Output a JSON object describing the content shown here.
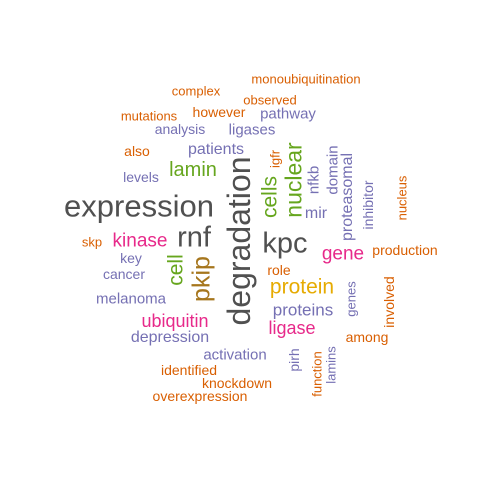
{
  "palette": {
    "orange": "#d95f02",
    "purple": "#7570b3",
    "grey": "#505050",
    "green": "#66a61e",
    "magenta": "#e7298a",
    "gold": "#e6ab02",
    "brown": "#a6761d"
  },
  "words": [
    {
      "text": "monoubiquitination",
      "color": "orange"
    },
    {
      "text": "complex",
      "color": "orange"
    },
    {
      "text": "observed",
      "color": "orange"
    },
    {
      "text": "mutations",
      "color": "orange"
    },
    {
      "text": "however",
      "color": "orange"
    },
    {
      "text": "pathway",
      "color": "purple"
    },
    {
      "text": "analysis",
      "color": "purple"
    },
    {
      "text": "ligases",
      "color": "purple"
    },
    {
      "text": "also",
      "color": "orange"
    },
    {
      "text": "patients",
      "color": "purple"
    },
    {
      "text": "lamin",
      "color": "green"
    },
    {
      "text": "levels",
      "color": "purple"
    },
    {
      "text": "expression",
      "color": "grey"
    },
    {
      "text": "degradation",
      "color": "grey"
    },
    {
      "text": "nuclear",
      "color": "green"
    },
    {
      "text": "cells",
      "color": "green"
    },
    {
      "text": "igfr",
      "color": "orange"
    },
    {
      "text": "nfkb",
      "color": "purple"
    },
    {
      "text": "domain",
      "color": "purple"
    },
    {
      "text": "proteasomal",
      "color": "purple"
    },
    {
      "text": "inhibitor",
      "color": "purple"
    },
    {
      "text": "nucleus",
      "color": "orange"
    },
    {
      "text": "mir",
      "color": "purple"
    },
    {
      "text": "skp",
      "color": "orange"
    },
    {
      "text": "kinase",
      "color": "magenta"
    },
    {
      "text": "rnf",
      "color": "grey"
    },
    {
      "text": "kpc",
      "color": "grey"
    },
    {
      "text": "gene",
      "color": "magenta"
    },
    {
      "text": "production",
      "color": "orange"
    },
    {
      "text": "key",
      "color": "purple"
    },
    {
      "text": "cell",
      "color": "green"
    },
    {
      "text": "pkip",
      "color": "brown"
    },
    {
      "text": "cancer",
      "color": "purple"
    },
    {
      "text": "role",
      "color": "orange"
    },
    {
      "text": "protein",
      "color": "gold"
    },
    {
      "text": "melanoma",
      "color": "purple"
    },
    {
      "text": "proteins",
      "color": "purple"
    },
    {
      "text": "genes",
      "color": "purple"
    },
    {
      "text": "involved",
      "color": "orange"
    },
    {
      "text": "ubiquitin",
      "color": "magenta"
    },
    {
      "text": "ligase",
      "color": "magenta"
    },
    {
      "text": "depression",
      "color": "purple"
    },
    {
      "text": "among",
      "color": "orange"
    },
    {
      "text": "activation",
      "color": "purple"
    },
    {
      "text": "pirh",
      "color": "purple"
    },
    {
      "text": "function",
      "color": "orange"
    },
    {
      "text": "lamins",
      "color": "purple"
    },
    {
      "text": "identified",
      "color": "orange"
    },
    {
      "text": "knockdown",
      "color": "orange"
    },
    {
      "text": "overexpression",
      "color": "orange"
    }
  ]
}
